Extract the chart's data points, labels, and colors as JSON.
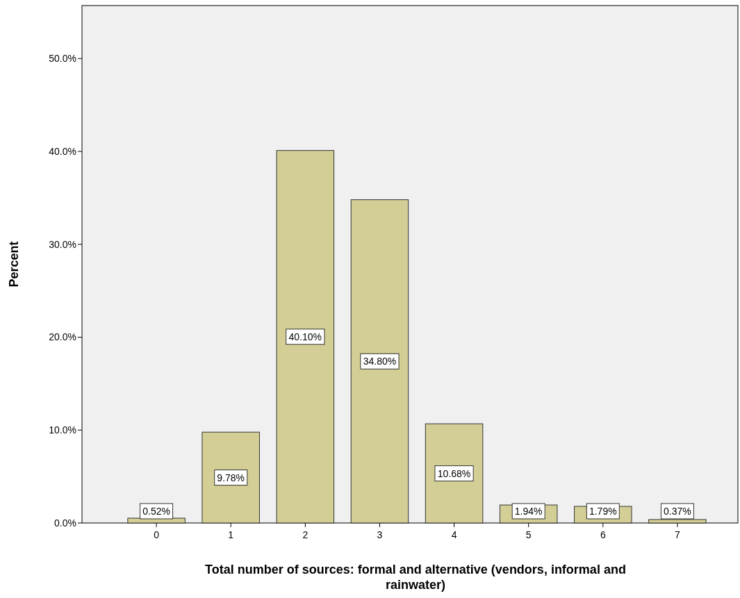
{
  "chart_data": {
    "type": "bar",
    "xlabel": "Total number of sources: formal and alternative (vendors, informal and rainwater)",
    "ylabel": "Percent",
    "categories": [
      "0",
      "1",
      "2",
      "3",
      "4",
      "5",
      "6",
      "7"
    ],
    "values": [
      0.52,
      9.78,
      40.1,
      34.8,
      10.68,
      1.94,
      1.79,
      0.37
    ],
    "value_labels": [
      "0.52%",
      "9.78%",
      "40.10%",
      "34.80%",
      "10.68%",
      "1.94%",
      "1.79%",
      "0.37%"
    ],
    "color": "#d3ce96",
    "ylim": [
      0,
      55.7
    ],
    "yticks": [
      {
        "value": 0,
        "label": "0.0%"
      },
      {
        "value": 10,
        "label": "10.0%"
      },
      {
        "value": 20,
        "label": "20.0%"
      },
      {
        "value": 30,
        "label": "30.0%"
      },
      {
        "value": 40,
        "label": "40.0%"
      },
      {
        "value": 50,
        "label": "50.0%"
      }
    ],
    "grid": false
  }
}
